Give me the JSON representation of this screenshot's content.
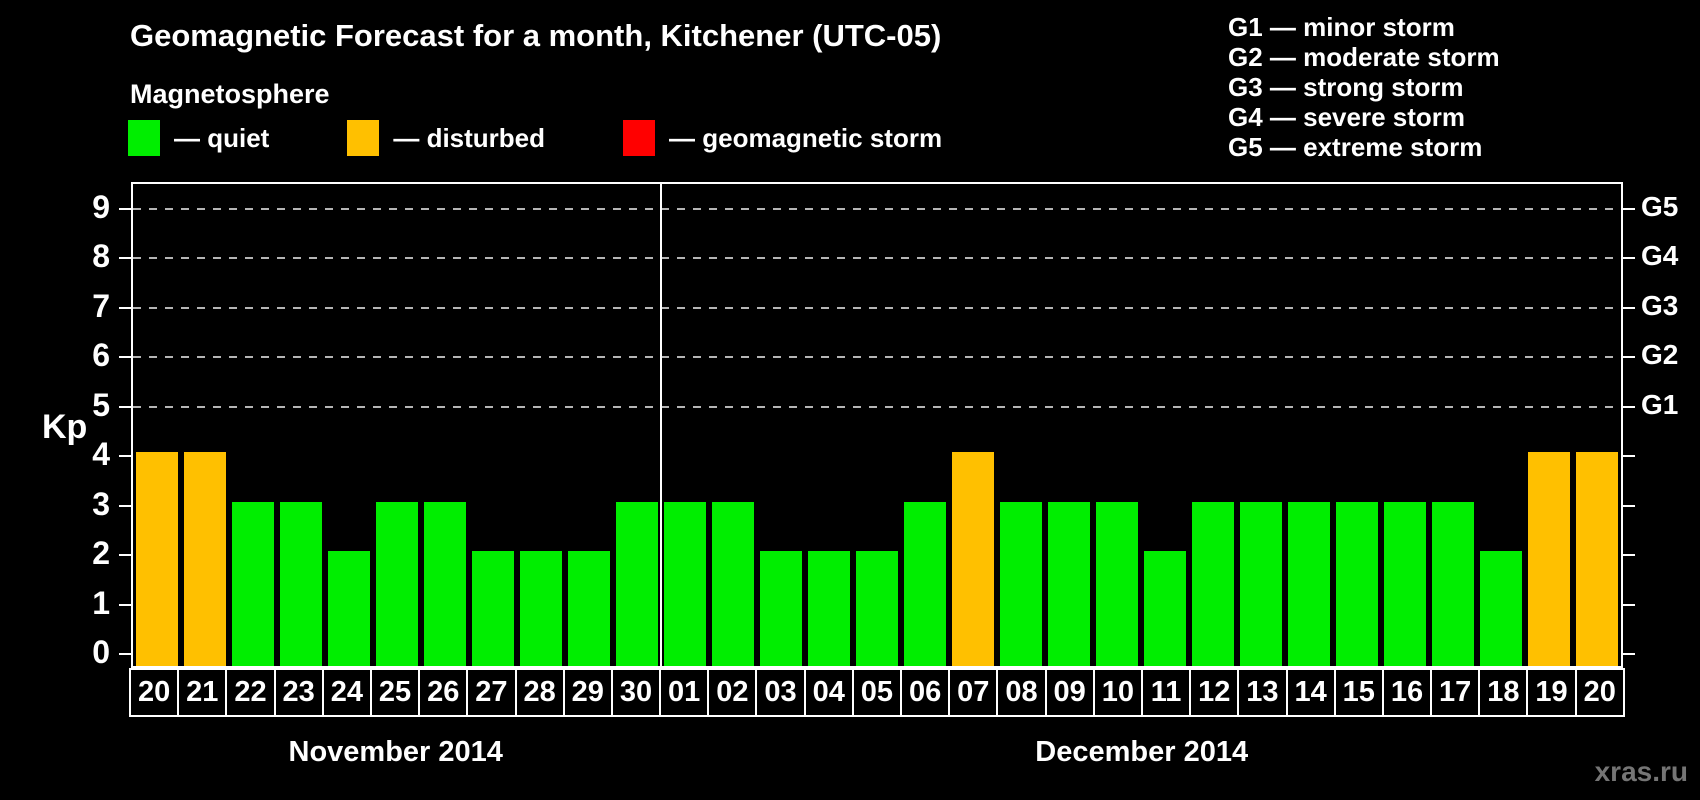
{
  "title": "Geomagnetic Forecast for a month, Kitchener (UTC-05)",
  "subtitle": "Magnetosphere",
  "magnetosphere_legend": [
    {
      "name": "quiet",
      "label": "— quiet",
      "color": "#00EE00"
    },
    {
      "name": "disturbed",
      "label": "— disturbed",
      "color": "#FFC000"
    },
    {
      "name": "storm",
      "label": "— geomagnetic storm",
      "color": "#FF0000"
    }
  ],
  "g_scale_legend": [
    "G1 — minor storm",
    "G2 — moderate storm",
    "G3 — strong storm",
    "G4 — severe storm",
    "G5 — extreme storm"
  ],
  "watermark": "xras.ru",
  "chart_data": {
    "type": "bar",
    "title": "Geomagnetic Forecast for a month, Kitchener (UTC-05)",
    "ylabel": "Kp",
    "ylim": [
      0,
      9.5
    ],
    "y_ticks": [
      "0",
      "1",
      "2",
      "3",
      "4",
      "5",
      "6",
      "7",
      "8",
      "9"
    ],
    "grid": "dashed horizontal gridlines at G-storm levels only",
    "grid_kp_levels": [
      5,
      6,
      7,
      8,
      9
    ],
    "right_axis": [
      {
        "label": "G1",
        "kp": 5
      },
      {
        "label": "G2",
        "kp": 6
      },
      {
        "label": "G3",
        "kp": 7
      },
      {
        "label": "G4",
        "kp": 8
      },
      {
        "label": "G5",
        "kp": 9
      }
    ],
    "state_colors": {
      "quiet": "#00EE00",
      "disturbed": "#FFC000",
      "storm": "#FF0000"
    },
    "months": [
      {
        "label": "November 2014",
        "days": [
          {
            "day": "20",
            "kp": 4,
            "state": "disturbed"
          },
          {
            "day": "21",
            "kp": 4,
            "state": "disturbed"
          },
          {
            "day": "22",
            "kp": 3,
            "state": "quiet"
          },
          {
            "day": "23",
            "kp": 3,
            "state": "quiet"
          },
          {
            "day": "24",
            "kp": 2,
            "state": "quiet"
          },
          {
            "day": "25",
            "kp": 3,
            "state": "quiet"
          },
          {
            "day": "26",
            "kp": 3,
            "state": "quiet"
          },
          {
            "day": "27",
            "kp": 2,
            "state": "quiet"
          },
          {
            "day": "28",
            "kp": 2,
            "state": "quiet"
          },
          {
            "day": "29",
            "kp": 2,
            "state": "quiet"
          },
          {
            "day": "30",
            "kp": 3,
            "state": "quiet"
          }
        ]
      },
      {
        "label": "December 2014",
        "days": [
          {
            "day": "01",
            "kp": 3,
            "state": "quiet"
          },
          {
            "day": "02",
            "kp": 3,
            "state": "quiet"
          },
          {
            "day": "03",
            "kp": 2,
            "state": "quiet"
          },
          {
            "day": "04",
            "kp": 2,
            "state": "quiet"
          },
          {
            "day": "05",
            "kp": 2,
            "state": "quiet"
          },
          {
            "day": "06",
            "kp": 3,
            "state": "quiet"
          },
          {
            "day": "07",
            "kp": 4,
            "state": "disturbed"
          },
          {
            "day": "08",
            "kp": 3,
            "state": "quiet"
          },
          {
            "day": "09",
            "kp": 3,
            "state": "quiet"
          },
          {
            "day": "10",
            "kp": 3,
            "state": "quiet"
          },
          {
            "day": "11",
            "kp": 2,
            "state": "quiet"
          },
          {
            "day": "12",
            "kp": 3,
            "state": "quiet"
          },
          {
            "day": "13",
            "kp": 3,
            "state": "quiet"
          },
          {
            "day": "14",
            "kp": 3,
            "state": "quiet"
          },
          {
            "day": "15",
            "kp": 3,
            "state": "quiet"
          },
          {
            "day": "16",
            "kp": 3,
            "state": "quiet"
          },
          {
            "day": "17",
            "kp": 3,
            "state": "quiet"
          },
          {
            "day": "18",
            "kp": 2,
            "state": "quiet"
          },
          {
            "day": "19",
            "kp": 4,
            "state": "disturbed"
          },
          {
            "day": "20",
            "kp": 4,
            "state": "disturbed"
          }
        ]
      }
    ]
  }
}
